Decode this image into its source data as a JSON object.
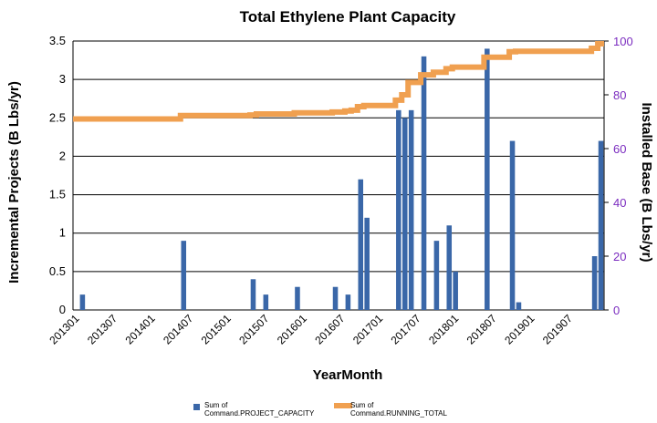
{
  "chart_data": {
    "type": "bar",
    "title": "Total Ethylene Plant Capacity",
    "xlabel": "YearMonth",
    "ylabel": "Incremental Projects (B Lbs/yr)",
    "y2label": "Installed Base (B Lbs/yr)",
    "ylim": [
      0,
      3.5
    ],
    "y2lim": [
      0,
      100
    ],
    "yticks": [
      "0",
      "0.5",
      "1",
      "1.5",
      "2",
      "2.5",
      "3",
      "3.5"
    ],
    "y2ticks": [
      "0",
      "20",
      "40",
      "60",
      "80",
      "100"
    ],
    "xticks": [
      "201301",
      "201307",
      "201401",
      "201407",
      "201501",
      "201507",
      "201601",
      "201607",
      "201701",
      "201707",
      "201801",
      "201807",
      "201901",
      "201907"
    ],
    "x_start": "201301",
    "x_end": "201912",
    "grid": true,
    "legend_position": "bottom",
    "series": [
      {
        "name": "Sum of Command.PROJECT_CAPACITY",
        "type": "bar",
        "axis": "left",
        "color": "#3a67a8",
        "points": [
          {
            "x": "201302",
            "y": 0.2
          },
          {
            "x": "201406",
            "y": 0.9
          },
          {
            "x": "201505",
            "y": 0.4
          },
          {
            "x": "201507",
            "y": 0.2
          },
          {
            "x": "201512",
            "y": 0.3
          },
          {
            "x": "201606",
            "y": 0.3
          },
          {
            "x": "201608",
            "y": 0.2
          },
          {
            "x": "201610",
            "y": 1.7
          },
          {
            "x": "201611",
            "y": 1.2
          },
          {
            "x": "201704",
            "y": 2.6
          },
          {
            "x": "201705",
            "y": 2.5
          },
          {
            "x": "201706",
            "y": 2.6
          },
          {
            "x": "201708",
            "y": 3.3
          },
          {
            "x": "201710",
            "y": 0.9
          },
          {
            "x": "201712",
            "y": 1.1
          },
          {
            "x": "201801",
            "y": 0.5
          },
          {
            "x": "201806",
            "y": 3.4
          },
          {
            "x": "201810",
            "y": 2.2
          },
          {
            "x": "201811",
            "y": 0.1
          },
          {
            "x": "201911",
            "y": 0.7
          },
          {
            "x": "201912",
            "y": 2.2
          }
        ]
      },
      {
        "name": "Sum of Command.RUNNING_TOTAL",
        "type": "line",
        "axis": "right",
        "color": "#f0a050",
        "points": [
          {
            "x": "201301",
            "y": 71.0
          },
          {
            "x": "201405",
            "y": 71.0
          },
          {
            "x": "201406",
            "y": 72.3
          },
          {
            "x": "201504",
            "y": 72.3
          },
          {
            "x": "201505",
            "y": 72.5
          },
          {
            "x": "201506",
            "y": 72.9
          },
          {
            "x": "201511",
            "y": 72.9
          },
          {
            "x": "201512",
            "y": 73.3
          },
          {
            "x": "201605",
            "y": 73.3
          },
          {
            "x": "201606",
            "y": 73.6
          },
          {
            "x": "201607",
            "y": 73.6
          },
          {
            "x": "201608",
            "y": 74.0
          },
          {
            "x": "201609",
            "y": 74.3
          },
          {
            "x": "201610",
            "y": 75.6
          },
          {
            "x": "201611",
            "y": 76.0
          },
          {
            "x": "201703",
            "y": 76.0
          },
          {
            "x": "201704",
            "y": 78.0
          },
          {
            "x": "201705",
            "y": 80.0
          },
          {
            "x": "201706",
            "y": 84.6
          },
          {
            "x": "201707",
            "y": 84.6
          },
          {
            "x": "201708",
            "y": 87.4
          },
          {
            "x": "201709",
            "y": 87.4
          },
          {
            "x": "201710",
            "y": 88.4
          },
          {
            "x": "201711",
            "y": 88.4
          },
          {
            "x": "201712",
            "y": 89.7
          },
          {
            "x": "201801",
            "y": 90.3
          },
          {
            "x": "201805",
            "y": 90.3
          },
          {
            "x": "201806",
            "y": 94.0
          },
          {
            "x": "201809",
            "y": 94.0
          },
          {
            "x": "201810",
            "y": 96.0
          },
          {
            "x": "201811",
            "y": 96.2
          },
          {
            "x": "201910",
            "y": 96.2
          },
          {
            "x": "201911",
            "y": 97.3
          },
          {
            "x": "201912",
            "y": 99.0
          }
        ]
      }
    ],
    "legend": [
      {
        "line1": "Sum of",
        "line2": "Command.PROJECT_CAPACITY",
        "kind": "bar",
        "color": "#3a67a8"
      },
      {
        "line1": "Sum of",
        "line2": "Command.RUNNING_TOTAL",
        "kind": "line",
        "color": "#f0a050"
      }
    ],
    "colors": {
      "right_axis": "#7a2bbf",
      "grid": "#000000"
    }
  }
}
